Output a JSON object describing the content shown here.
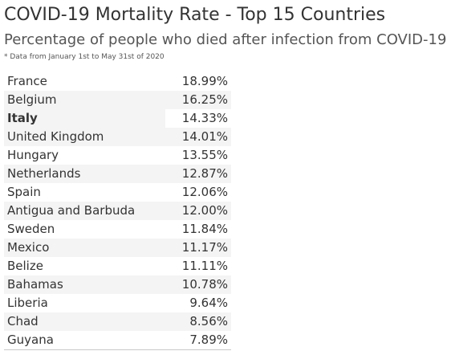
{
  "header": {
    "title": "COVID-19 Mortality Rate - Top 15 Countries",
    "subtitle": "Percentage of people who died after infection from COVID-19",
    "footnote": "* Data from January 1st to May 31st of 2020"
  },
  "table": {
    "rows": [
      {
        "country": "France",
        "rate": "18.99%"
      },
      {
        "country": "Belgium",
        "rate": "16.25%"
      },
      {
        "country": "Italy",
        "rate": "14.33%"
      },
      {
        "country": "United Kingdom",
        "rate": "14.01%"
      },
      {
        "country": "Hungary",
        "rate": "13.55%"
      },
      {
        "country": "Netherlands",
        "rate": "12.87%"
      },
      {
        "country": "Spain",
        "rate": "12.06%"
      },
      {
        "country": "Antigua and Barbuda",
        "rate": "12.00%"
      },
      {
        "country": "Sweden",
        "rate": "11.84%"
      },
      {
        "country": "Mexico",
        "rate": "11.17%"
      },
      {
        "country": "Belize",
        "rate": "11.11%"
      },
      {
        "country": "Bahamas",
        "rate": "10.78%"
      },
      {
        "country": "Liberia",
        "rate": "9.64%"
      },
      {
        "country": "Chad",
        "rate": "8.56%"
      },
      {
        "country": "Guyana",
        "rate": "7.89%"
      }
    ],
    "highlighted_country": "Italy"
  },
  "colors": {
    "text": "#333333",
    "stripe": "#f4f4f4",
    "background": "#ffffff"
  }
}
